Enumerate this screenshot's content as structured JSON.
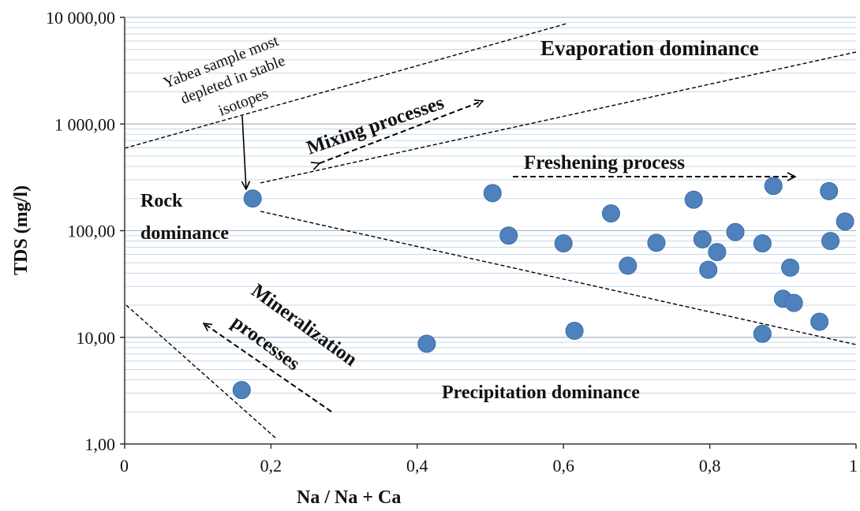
{
  "chart_data": {
    "type": "scatter",
    "xlabel": "Na / Na + Ca",
    "ylabel": "TDS (mg/l)",
    "xlim": [
      0,
      1
    ],
    "ylim": [
      1,
      10000
    ],
    "yscale": "log",
    "grid": "horizontal minor gridlines (log scale)",
    "x_ticks": [
      {
        "v": 0,
        "label": "0"
      },
      {
        "v": 0.2,
        "label": "0,2"
      },
      {
        "v": 0.4,
        "label": "0,4"
      },
      {
        "v": 0.6,
        "label": "0,6"
      },
      {
        "v": 0.8,
        "label": "0,8"
      },
      {
        "v": 1,
        "label": "1"
      }
    ],
    "y_ticks": [
      {
        "v": 1,
        "label": "1,00"
      },
      {
        "v": 10,
        "label": "10,00"
      },
      {
        "v": 100,
        "label": "100,00"
      },
      {
        "v": 1000,
        "label": "1 000,00"
      },
      {
        "v": 10000,
        "label": "10 000,00"
      }
    ],
    "point_color": "#4f81bd",
    "points": [
      {
        "x": 0.16,
        "y": 3.2
      },
      {
        "x": 0.175,
        "y": 200
      },
      {
        "x": 0.413,
        "y": 8.7
      },
      {
        "x": 0.503,
        "y": 225
      },
      {
        "x": 0.525,
        "y": 90
      },
      {
        "x": 0.6,
        "y": 76
      },
      {
        "x": 0.615,
        "y": 11.5
      },
      {
        "x": 0.665,
        "y": 145
      },
      {
        "x": 0.688,
        "y": 47
      },
      {
        "x": 0.727,
        "y": 77
      },
      {
        "x": 0.778,
        "y": 195
      },
      {
        "x": 0.79,
        "y": 83
      },
      {
        "x": 0.798,
        "y": 43
      },
      {
        "x": 0.81,
        "y": 63
      },
      {
        "x": 0.835,
        "y": 97
      },
      {
        "x": 0.872,
        "y": 76
      },
      {
        "x": 0.872,
        "y": 10.8
      },
      {
        "x": 0.887,
        "y": 263
      },
      {
        "x": 0.9,
        "y": 23
      },
      {
        "x": 0.91,
        "y": 45
      },
      {
        "x": 0.915,
        "y": 21
      },
      {
        "x": 0.95,
        "y": 14
      },
      {
        "x": 0.963,
        "y": 235
      },
      {
        "x": 0.965,
        "y": 80
      },
      {
        "x": 0.985,
        "y": 122
      }
    ],
    "annotations": {
      "evaporation": "Evaporation dominance",
      "rock_line1": "Rock",
      "rock_line2": "dominance",
      "precipitation": "Precipitation dominance",
      "mixing": "Mixing processes",
      "freshening": "Freshening process",
      "mineral_line1": "Mineralization",
      "mineral_line2": "processes",
      "yabea_line1": "Yabea sample most",
      "yabea_line2": "depleted in stable",
      "yabea_line3": "isotopes"
    }
  }
}
